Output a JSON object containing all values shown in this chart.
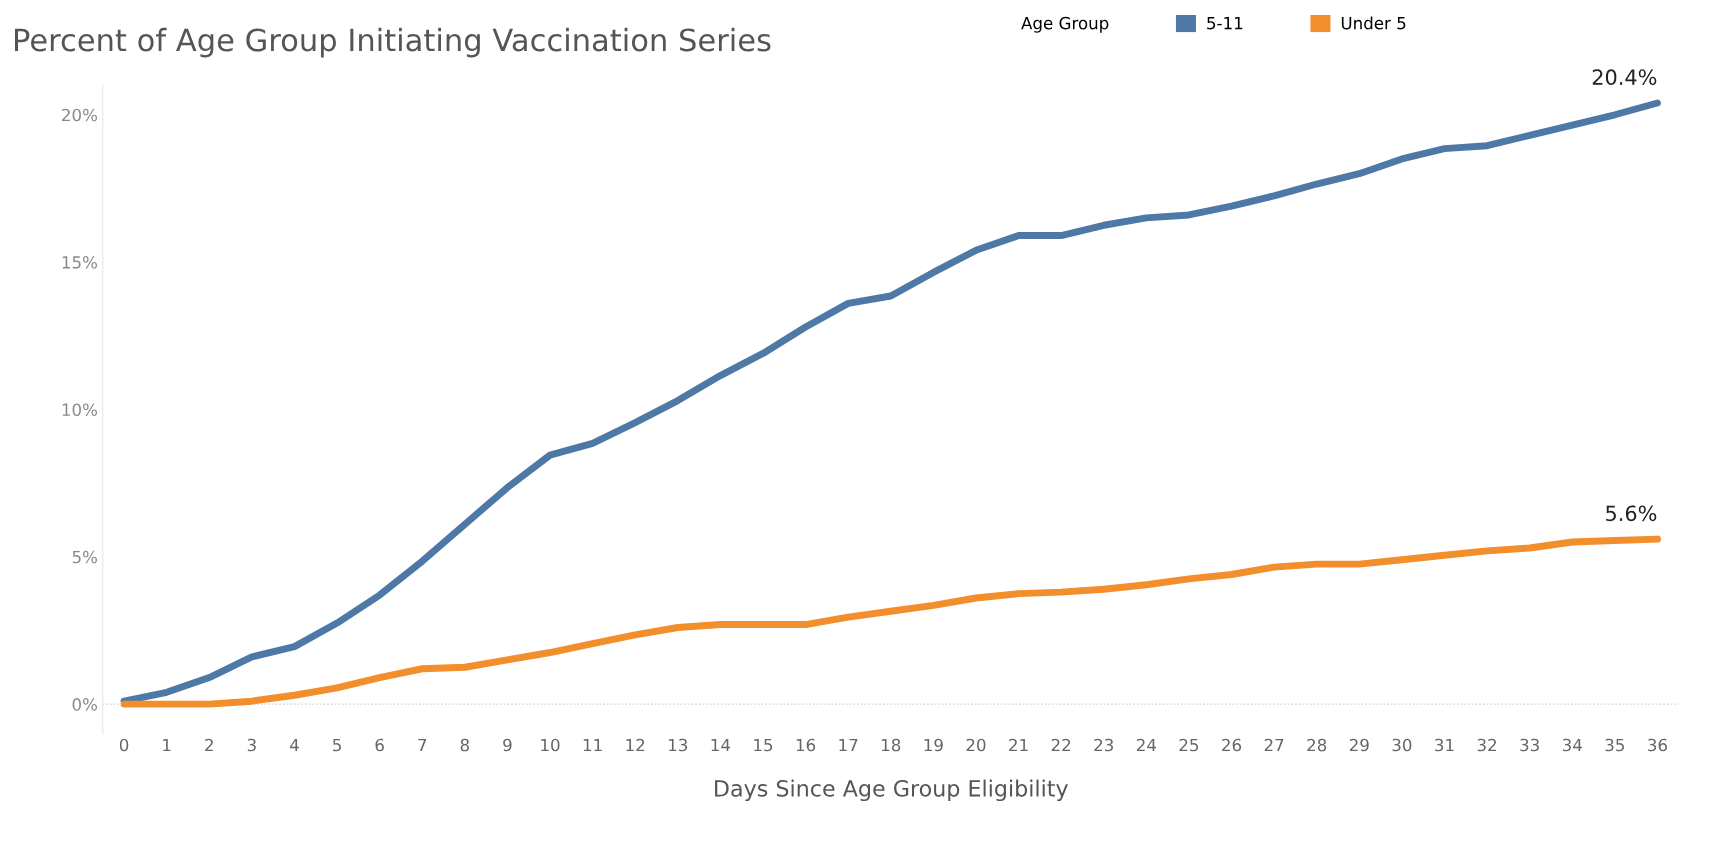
{
  "chart_data": {
    "type": "line",
    "title": "Percent of Age Group Initiating Vaccination Series",
    "xlabel": "Days Since Age Group Eligibility",
    "legend_title": "Age Group",
    "legend": "top right",
    "grid": false,
    "marker": "none",
    "line_style": "solid",
    "categories": [
      "0",
      "1",
      "2",
      "3",
      "4",
      "5",
      "6",
      "7",
      "8",
      "9",
      "10",
      "11",
      "12",
      "13",
      "14",
      "15",
      "16",
      "17",
      "18",
      "19",
      "20",
      "21",
      "22",
      "23",
      "24",
      "25",
      "26",
      "27",
      "28",
      "29",
      "30",
      "31",
      "32",
      "33",
      "34",
      "35",
      "36"
    ],
    "ylim": [
      -1,
      21
    ],
    "yticks": [
      {
        "value": 0,
        "label": "0%"
      },
      {
        "value": 5,
        "label": "5%"
      },
      {
        "value": 10,
        "label": "10%"
      },
      {
        "value": 15,
        "label": "15%"
      },
      {
        "value": 20,
        "label": "20%"
      }
    ],
    "ref_lines": [
      {
        "axis": "y",
        "value": 0,
        "label": null,
        "color": "#c8c8c8",
        "line_style": "dotted"
      }
    ],
    "series": [
      {
        "name": "5-11",
        "color": "#4e79a7",
        "values": [
          0.1,
          0.4,
          0.9,
          1.6,
          1.95,
          2.75,
          3.7,
          4.85,
          6.1,
          7.35,
          8.45,
          8.85,
          9.55,
          10.3,
          11.15,
          11.9,
          12.8,
          13.6,
          13.85,
          14.65,
          15.4,
          15.9,
          15.9,
          16.25,
          16.5,
          16.6,
          16.9,
          17.25,
          17.65,
          18.0,
          18.5,
          18.85,
          18.95,
          19.3,
          19.65,
          20.0,
          20.4
        ],
        "value_labels": [
          null,
          null,
          null,
          null,
          null,
          null,
          null,
          null,
          null,
          null,
          null,
          null,
          null,
          null,
          null,
          null,
          null,
          null,
          null,
          null,
          null,
          null,
          null,
          null,
          null,
          null,
          null,
          null,
          null,
          null,
          null,
          null,
          null,
          null,
          null,
          null,
          "20.4%"
        ]
      },
      {
        "name": "Under 5",
        "color": "#f28e2b",
        "values": [
          0.0,
          0.0,
          0.0,
          0.1,
          0.3,
          0.55,
          0.9,
          1.2,
          1.25,
          1.5,
          1.75,
          2.05,
          2.35,
          2.6,
          2.7,
          2.7,
          2.7,
          2.95,
          3.15,
          3.35,
          3.6,
          3.75,
          3.8,
          3.9,
          4.05,
          4.25,
          4.4,
          4.65,
          4.75,
          4.75,
          4.9,
          5.05,
          5.2,
          5.3,
          5.5,
          5.55,
          5.6
        ],
        "value_labels": [
          null,
          null,
          null,
          null,
          null,
          null,
          null,
          null,
          null,
          null,
          null,
          null,
          null,
          null,
          null,
          null,
          null,
          null,
          null,
          null,
          null,
          null,
          null,
          null,
          null,
          null,
          null,
          null,
          null,
          null,
          null,
          null,
          null,
          null,
          null,
          null,
          "5.6%"
        ]
      }
    ]
  }
}
